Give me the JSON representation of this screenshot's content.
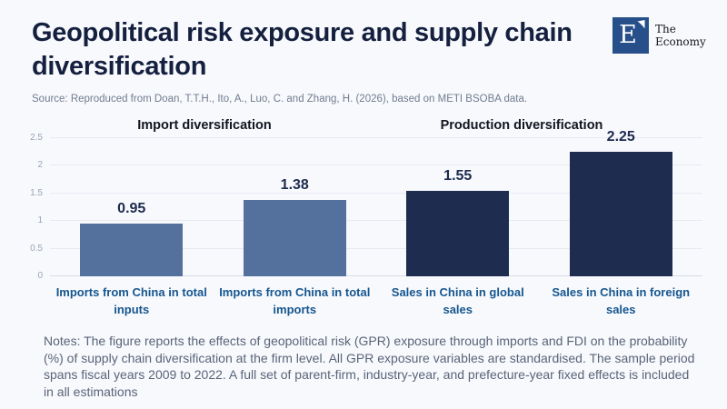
{
  "header": {
    "title_lines": [
      "Geopolitical risk exposure and supply chain",
      "diversification"
    ],
    "source": "Source: Reproduced from Doan, T.T.H., Ito, A., Luo, C. and Zhang, H. (2026), based on METI BSOBA data.",
    "logo": {
      "mark": "E",
      "name_line1": "The",
      "name_line2": "Economy"
    }
  },
  "chart_data": {
    "type": "bar",
    "group_headers": [
      "Import diversification",
      "Production diversification"
    ],
    "categories": [
      "Imports from China in total inputs",
      "Imports from China in total imports",
      "Sales in China in global sales",
      "Sales in China in foreign sales"
    ],
    "values": [
      0.95,
      1.38,
      1.55,
      2.25
    ],
    "value_labels": [
      "0.95",
      "1.38",
      "1.55",
      "2.25"
    ],
    "bar_colors": [
      "#54719e",
      "#54719e",
      "#1d2c4f",
      "#1d2c4f"
    ],
    "y_ticks": [
      "0",
      "0.5",
      "1",
      "1.5",
      "2",
      "2.5"
    ],
    "ylim": [
      0,
      2.5
    ],
    "grid": true,
    "legend": "none",
    "title": "",
    "xlabel": "",
    "ylabel": ""
  },
  "notes": "Notes: The figure reports the effects of geopolitical risk (GPR) exposure through imports and FDI on the probability (%) of supply chain diversification at the firm level. All GPR exposure variables are standardised. The sample period spans fiscal years 2009 to 2022. A full set of parent-firm, industry-year, and prefecture-year fixed effects is included in all estimations",
  "colors": {
    "background": "#f7f9fd",
    "title": "#15203f",
    "source_text": "#727c8e",
    "bar_light": "#54719e",
    "bar_dark": "#1d2c4f",
    "category_label": "#16568f",
    "value_label": "#1e2b4e",
    "gridline": "#e6eaf1",
    "notes_text": "#5a6477",
    "logo_square": "#27508a"
  }
}
